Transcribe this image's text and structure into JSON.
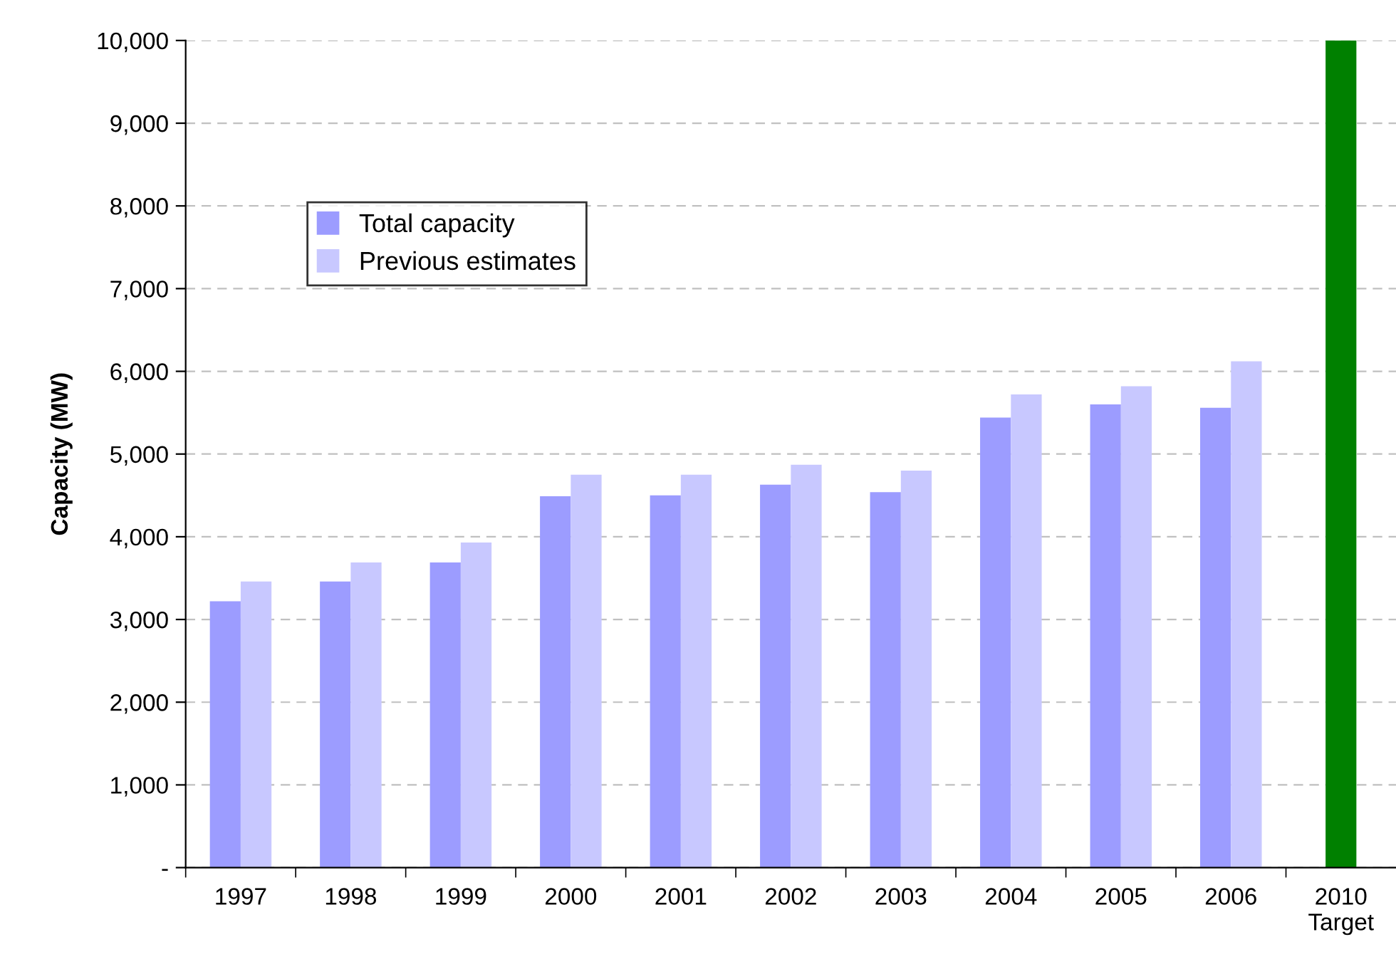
{
  "chart_data": {
    "type": "bar",
    "ylabel": "Capacity (MW)",
    "categories": [
      "1997",
      "1998",
      "1999",
      "2000",
      "2001",
      "2002",
      "2003",
      "2004",
      "2005",
      "2006",
      "2010\nTarget"
    ],
    "series": [
      {
        "name": "Total capacity",
        "color": "#9c9cff",
        "values": [
          3220,
          3460,
          3690,
          4490,
          4500,
          4630,
          4540,
          5440,
          5600,
          5560,
          null
        ]
      },
      {
        "name": "Previous estimates",
        "color": "#c8c8ff",
        "values": [
          3460,
          3690,
          3930,
          4750,
          4750,
          4870,
          4800,
          5720,
          5820,
          6120,
          null
        ]
      },
      {
        "color": "#008000",
        "values": [
          null,
          null,
          null,
          null,
          null,
          null,
          null,
          null,
          null,
          null,
          10000
        ]
      }
    ],
    "ylim": [
      0,
      10000
    ],
    "yticks": [
      {
        "value": 0,
        "label": "-"
      },
      {
        "value": 1000,
        "label": "1,000"
      },
      {
        "value": 2000,
        "label": "2,000"
      },
      {
        "value": 3000,
        "label": "3,000"
      },
      {
        "value": 4000,
        "label": "4,000"
      },
      {
        "value": 5000,
        "label": "5,000"
      },
      {
        "value": 6000,
        "label": "6,000"
      },
      {
        "value": 7000,
        "label": "7,000"
      },
      {
        "value": 8000,
        "label": "8,000"
      },
      {
        "value": 9000,
        "label": "9,000"
      },
      {
        "value": 10000,
        "label": "10,000"
      }
    ],
    "grid": "y",
    "legend": "top left"
  }
}
